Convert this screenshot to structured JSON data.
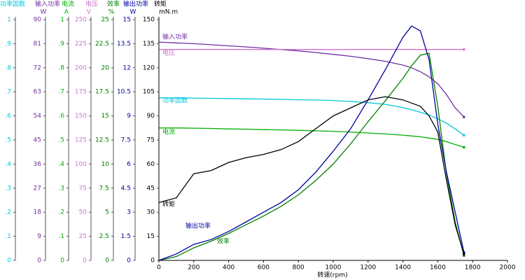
{
  "chart_data": {
    "type": "line",
    "x_label": "转速(rpm)",
    "x": [
      0,
      100,
      200,
      300,
      400,
      500,
      600,
      700,
      800,
      900,
      1000,
      1100,
      1200,
      1300,
      1400,
      1450,
      1500,
      1550,
      1600,
      1650,
      1700,
      1750
    ],
    "xlim": [
      0,
      2000
    ],
    "xticks": [
      0,
      200,
      400,
      600,
      800,
      1000,
      1200,
      1400,
      1600,
      1800,
      2000
    ],
    "series": [
      {
        "name": "功率因数",
        "color": "#00c8d8",
        "ylim": [
          0,
          1
        ],
        "yticks": [
          0,
          {
            "value": 0.1,
            "label": ".1"
          },
          {
            "value": 0.2,
            "label": ".2"
          },
          {
            "value": 0.3,
            "label": ".3"
          },
          {
            "value": 0.4,
            "label": ".4"
          },
          {
            "value": 0.5,
            "label": ".5"
          },
          {
            "value": 0.6,
            "label": ".6"
          },
          {
            "value": 0.7,
            "label": ".7"
          },
          {
            "value": 0.8,
            "label": ".8"
          },
          {
            "value": 0.9,
            "label": ".9"
          },
          1
        ],
        "values": [
          0.675,
          0.675,
          0.674,
          0.673,
          0.672,
          0.671,
          0.67,
          0.669,
          0.667,
          0.666,
          0.664,
          0.66,
          0.655,
          0.648,
          0.635,
          0.626,
          0.615,
          0.604,
          0.588,
          0.57,
          0.546,
          0.52
        ]
      },
      {
        "name": "输入功率",
        "unit": "W",
        "color": "#7030a0",
        "ylim": [
          0,
          90
        ],
        "yticks": [
          0,
          9,
          18,
          27,
          36,
          45,
          54,
          63,
          72,
          81,
          90
        ],
        "values": [
          81.6,
          81.3,
          81.0,
          80.6,
          80.2,
          79.8,
          79.3,
          78.8,
          78.3,
          77.7,
          77.0,
          76.3,
          75.4,
          74.4,
          73.0,
          72.0,
          70.5,
          68.6,
          66.0,
          62.0,
          57.0,
          53.6
        ]
      },
      {
        "name": "电流",
        "unit": "A",
        "color": "#00b000",
        "ylim": [
          0,
          1
        ],
        "yticks": [
          0,
          {
            "value": 0.1,
            "label": ".1"
          },
          {
            "value": 0.2,
            "label": ".2"
          },
          {
            "value": 0.3,
            "label": ".3"
          },
          {
            "value": 0.4,
            "label": ".4"
          },
          {
            "value": 0.5,
            "label": ".5"
          },
          {
            "value": 0.6,
            "label": ".6"
          },
          {
            "value": 0.7,
            "label": ".7"
          },
          {
            "value": 0.8,
            "label": ".8"
          },
          {
            "value": 0.9,
            "label": ".9"
          },
          1
        ],
        "values": [
          0.55,
          0.55,
          0.549,
          0.548,
          0.546,
          0.545,
          0.543,
          0.542,
          0.54,
          0.538,
          0.536,
          0.533,
          0.529,
          0.525,
          0.52,
          0.517,
          0.513,
          0.508,
          0.502,
          0.493,
          0.481,
          0.47
        ]
      },
      {
        "name": "电压",
        "unit": "V",
        "color": "#d070d0",
        "ylim": [
          0,
          250
        ],
        "yticks": [
          0,
          25,
          50,
          75,
          100,
          125,
          150,
          175,
          200,
          225,
          250
        ],
        "values": [
          219,
          219,
          219,
          219,
          219,
          219,
          219,
          219,
          219,
          219,
          219,
          219,
          219,
          219,
          219,
          219,
          219,
          219,
          219,
          219,
          219,
          219
        ]
      },
      {
        "name": "效率",
        "unit": "%",
        "color": "#008000",
        "ylim": [
          0,
          25
        ],
        "yticks": [
          0,
          2.5,
          5,
          7.5,
          10,
          12.5,
          15,
          17.5,
          20,
          22.5,
          25
        ],
        "values": [
          0,
          0.4,
          1.3,
          2.0,
          2.8,
          3.7,
          4.6,
          5.6,
          6.8,
          8.3,
          10.0,
          12.1,
          14.4,
          16.6,
          18.9,
          20.2,
          21.3,
          21.5,
          16.0,
          9.0,
          4.0,
          0.5
        ]
      },
      {
        "name": "输出功率",
        "unit": "W",
        "color": "#0000a0",
        "ylim": [
          0,
          15
        ],
        "yticks": [
          0,
          1.5,
          3,
          4.5,
          6,
          7.5,
          9,
          10.5,
          12,
          13.5,
          15
        ],
        "values": [
          0,
          0.4,
          1.0,
          1.3,
          1.8,
          2.4,
          3.0,
          3.6,
          4.4,
          5.5,
          6.8,
          8.2,
          10.0,
          11.9,
          13.9,
          14.6,
          14.3,
          12.5,
          8.5,
          5.5,
          3.0,
          0.5
        ]
      },
      {
        "name": "转矩",
        "unit": "mN.m",
        "color": "#000000",
        "ylim": [
          0,
          150
        ],
        "yticks": [
          0,
          15,
          30,
          45,
          60,
          75,
          90,
          105,
          120,
          135,
          150
        ],
        "values": [
          36,
          39,
          54,
          56,
          61,
          64,
          66,
          69,
          74,
          82,
          90,
          95,
          100,
          102,
          100,
          98,
          96,
          90,
          80,
          50,
          22,
          4
        ]
      }
    ]
  }
}
